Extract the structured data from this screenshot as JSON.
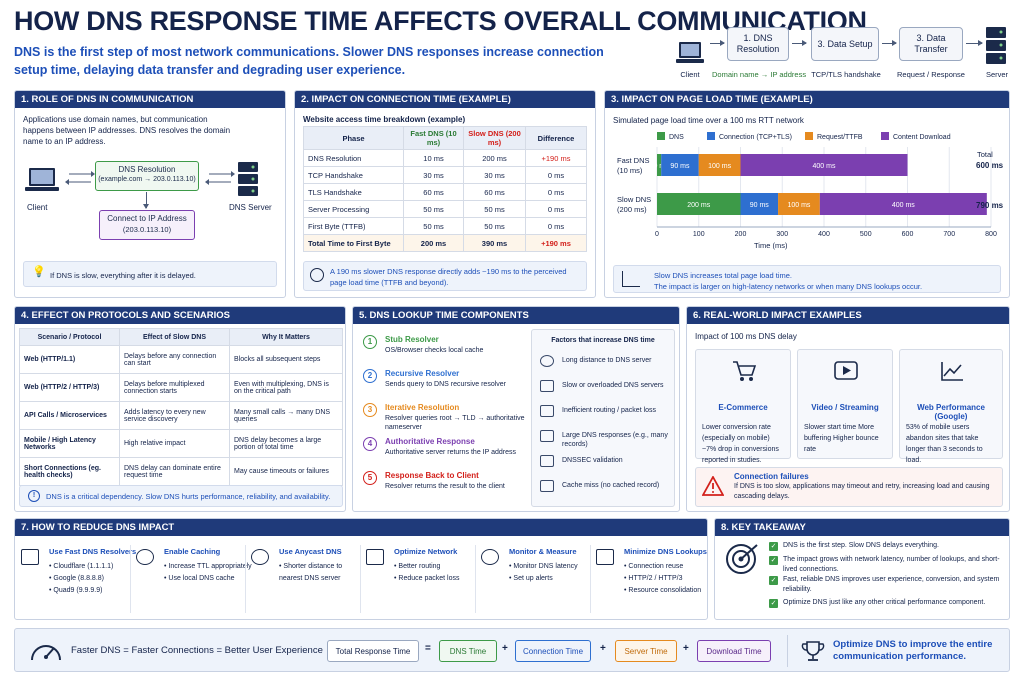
{
  "header": {
    "title": "HOW DNS RESPONSE TIME AFFECTS OVERALL COMMUNICATION",
    "subtitle": "DNS is the first step of most network communications. Slower DNS responses increase connection setup time, delaying data transfer and degrading user experience."
  },
  "flow": {
    "client": "Client",
    "server": "Server",
    "steps": [
      "1. DNS Resolution",
      "3. Data Setup",
      "3. Data Transfer"
    ],
    "labels": [
      "Domain name → IP address",
      "TCP/TLS handshake",
      "Request / Response"
    ]
  },
  "s1": {
    "heading": "1. ROLE OF DNS IN COMMUNICATION",
    "intro": "Applications use domain names, but communication happens between IP addresses. DNS resolves the domain name to an IP address.",
    "client": "Client",
    "dns_box_title": "DNS Resolution",
    "dns_box_sub": "(example.com → 203.0.113.10)",
    "connect_title": "Connect to IP Address",
    "connect_sub": "(203.0.113.10)",
    "dns_server": "DNS Server",
    "note": "If DNS is slow, everything after it is delayed."
  },
  "s2": {
    "heading": "2. IMPACT ON CONNECTION TIME (EXAMPLE)",
    "caption": "Website access time breakdown (example)",
    "columns": [
      "Phase",
      "Fast DNS (10 ms)",
      "Slow DNS (200 ms)",
      "Difference"
    ],
    "rows": [
      [
        "DNS Resolution",
        "10 ms",
        "200 ms",
        "+190 ms"
      ],
      [
        "TCP Handshake",
        "30 ms",
        "30 ms",
        "0 ms"
      ],
      [
        "TLS Handshake",
        "60 ms",
        "60 ms",
        "0 ms"
      ],
      [
        "Server Processing",
        "50 ms",
        "50 ms",
        "0 ms"
      ],
      [
        "First Byte (TTFB)",
        "50 ms",
        "50 ms",
        "0 ms"
      ],
      [
        "Total Time to First Byte",
        "200 ms",
        "390 ms",
        "+190 ms"
      ]
    ],
    "note": "A 190 ms slower DNS response directly adds ~190 ms to the perceived page load time (TTFB and beyond)."
  },
  "s3": {
    "heading": "3. IMPACT ON PAGE LOAD TIME (EXAMPLE)",
    "note_line1": "Slow DNS increases total page load time.",
    "note_line2": "The impact is larger on high-latency networks or when many DNS lookups occur."
  },
  "chart_data": {
    "type": "bar",
    "orientation": "horizontal",
    "stacked": true,
    "title": "Simulated page load time over a 100 ms RTT network",
    "xlabel": "Time (ms)",
    "xlim": [
      0,
      800
    ],
    "xticks": [
      "0",
      "100",
      "200",
      "300",
      "400",
      "500",
      "600",
      "700",
      "800"
    ],
    "categories": [
      "Fast DNS (10 ms)",
      "Slow DNS (200 ms)"
    ],
    "category_lines": [
      [
        "Fast DNS",
        "(10 ms)"
      ],
      [
        "Slow DNS",
        "(200 ms)"
      ]
    ],
    "series": [
      {
        "name": "DNS",
        "color": "#3d9a48",
        "values": [
          10,
          200
        ],
        "labels": [
          "10 ms",
          "200 ms"
        ]
      },
      {
        "name": "Connection (TCP+TLS)",
        "color": "#2e6fd0",
        "values": [
          90,
          90
        ],
        "labels": [
          "90 ms",
          "90 ms"
        ]
      },
      {
        "name": "Request/TTFB",
        "color": "#e58a1f",
        "values": [
          100,
          100
        ],
        "labels": [
          "100 ms",
          "100 ms"
        ]
      },
      {
        "name": "Content Download",
        "color": "#7b3fb0",
        "values": [
          400,
          400
        ],
        "labels": [
          "400 ms",
          "400 ms"
        ]
      }
    ],
    "total_header": "Total",
    "totals": [
      "600 ms",
      "790 ms"
    ],
    "legend": "top",
    "grid": true
  },
  "s4": {
    "heading": "4. EFFECT ON PROTOCOLS AND SCENARIOS",
    "columns": [
      "Scenario / Protocol",
      "Effect of Slow DNS",
      "Why It Matters"
    ],
    "rows": [
      [
        "Web (HTTP/1.1)",
        "Delays before any connection can start",
        "Blocks all subsequent steps"
      ],
      [
        "Web (HTTP/2 / HTTP/3)",
        "Delays before multiplexed connection starts",
        "Even with multiplexing, DNS is on the critical path"
      ],
      [
        "API Calls / Microservices",
        "Adds latency to every new service discovery",
        "Many small calls → many DNS queries"
      ],
      [
        "Mobile / High Latency Networks",
        "High relative impact",
        "DNS delay becomes a large portion of total time"
      ],
      [
        "Short Connections (eg. health checks)",
        "DNS delay can dominate entire request time",
        "May cause timeouts or failures"
      ]
    ],
    "note": "DNS is a critical dependency. Slow DNS hurts performance, reliability, and availability."
  },
  "s5": {
    "heading": "5. DNS LOOKUP TIME COMPONENTS",
    "components": [
      {
        "n": "1",
        "title": "Stub Resolver",
        "desc": "OS/Browser checks local cache",
        "color": "#3d9a48"
      },
      {
        "n": "2",
        "title": "Recursive Resolver",
        "desc": "Sends query to DNS recursive resolver",
        "color": "#2e6fd0"
      },
      {
        "n": "3",
        "title": "Iterative Resolution",
        "desc": "Resolver queries root → TLD → authoritative nameserver",
        "color": "#e58a1f"
      },
      {
        "n": "4",
        "title": "Authoritative Response",
        "desc": "Authoritative server returns the IP address",
        "color": "#7b3fb0"
      },
      {
        "n": "5",
        "title": "Response Back to Client",
        "desc": "Resolver returns the result to the client",
        "color": "#d3201b"
      }
    ],
    "factors_title": "Factors that increase DNS time",
    "factors": [
      "Long distance to DNS server",
      "Slow or overloaded DNS servers",
      "Inefficient routing / packet loss",
      "Large DNS responses (e.g., many records)",
      "DNSSEC validation",
      "Cache miss (no cached record)"
    ]
  },
  "s6": {
    "heading": "6. REAL-WORLD IMPACT EXAMPLES",
    "caption": "Impact of 100 ms DNS delay",
    "cards": [
      {
        "title": "E-Commerce",
        "desc": "Lower conversion rate (especially on mobile) ~7% drop in conversions reported in studies."
      },
      {
        "title": "Video / Streaming",
        "desc": "Slower start time More buffering Higher bounce rate"
      },
      {
        "title": "Web Performance (Google)",
        "desc": "53% of mobile users abandon sites that take longer than 3 seconds to load."
      }
    ],
    "fail_title": "Connection failures",
    "fail_desc": "If DNS is too slow, applications may timeout and retry, increasing load and causing cascading delays."
  },
  "s7": {
    "heading": "7. HOW TO REDUCE DNS IMPACT",
    "items": [
      {
        "title": "Use Fast DNS Resolvers",
        "lines": [
          "• Cloudflare (1.1.1.1)",
          "• Google (8.8.8.8)",
          "• Quad9 (9.9.9.9)"
        ]
      },
      {
        "title": "Enable Caching",
        "lines": [
          "• Increase TTL appropriately",
          "• Use local DNS cache"
        ]
      },
      {
        "title": "Use Anycast DNS",
        "lines": [
          "• Shorter distance to",
          "nearest DNS server"
        ]
      },
      {
        "title": "Optimize Network",
        "lines": [
          "• Better routing",
          "• Reduce packet loss"
        ]
      },
      {
        "title": "Monitor & Measure",
        "lines": [
          "• Monitor DNS latency",
          "• Set up alerts"
        ]
      },
      {
        "title": "Minimize DNS Lookups",
        "lines": [
          "• Connection reuse",
          "• HTTP/2 / HTTP/3",
          "• Resource consolidation"
        ]
      }
    ]
  },
  "s8": {
    "heading": "8. KEY TAKEAWAY",
    "items": [
      "DNS is the first step. Slow DNS delays everything.",
      "The impact grows with network latency, number of lookups, and short-lived connections.",
      "Fast, reliable DNS improves user experience, conversion, and system reliability.",
      "Optimize DNS just like any other critical performance component."
    ]
  },
  "footer": {
    "slogan": "Faster DNS = Faster Connections = Better User Experience",
    "total": "Total Response Time",
    "eq": "=",
    "plus": "+",
    "dns": "DNS Time",
    "conn": "Connection Time",
    "server": "Server Time",
    "download": "Download Time",
    "cta": "Optimize DNS to improve the entire communication performance."
  }
}
